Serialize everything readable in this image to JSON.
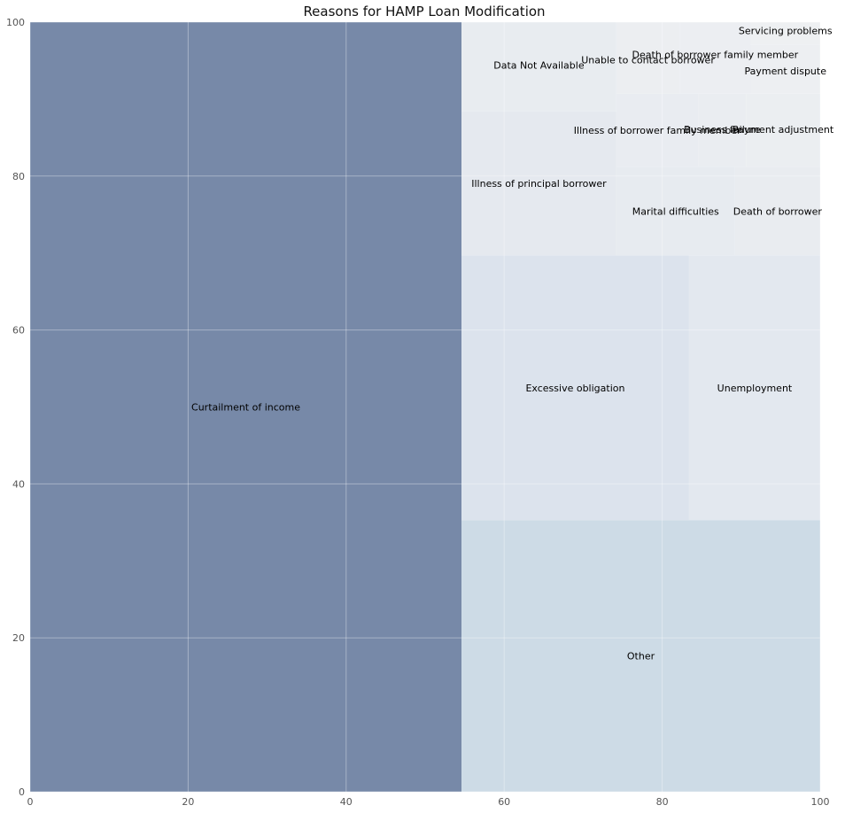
{
  "chart_data": {
    "type": "treemap",
    "title": "Reasons for HAMP Loan Modification",
    "xlabel": "",
    "ylabel": "",
    "xlim": [
      0,
      100
    ],
    "ylim": [
      0,
      100
    ],
    "x_ticks": [
      0,
      20,
      40,
      60,
      80,
      100
    ],
    "y_ticks": [
      0,
      20,
      40,
      60,
      80,
      100
    ],
    "grid": true,
    "cells": [
      {
        "label": "Curtailment of income",
        "x": 0,
        "y": 0,
        "dx": 54.6,
        "dy": 100,
        "color": "#7789a8"
      },
      {
        "label": "Other",
        "x": 54.6,
        "y": 0,
        "dx": 45.4,
        "dy": 35.3,
        "color": "#cddbe6"
      },
      {
        "label": "Excessive obligation",
        "x": 54.6,
        "y": 35.3,
        "dx": 28.8,
        "dy": 34.4,
        "color": "#dce3ed"
      },
      {
        "label": "Unemployment",
        "x": 83.4,
        "y": 35.3,
        "dx": 16.6,
        "dy": 34.4,
        "color": "#e3e8ef"
      },
      {
        "label": "Illness of principal borrower",
        "x": 54.6,
        "y": 69.7,
        "dx": 19.6,
        "dy": 18.7,
        "color": "#e5e9ef"
      },
      {
        "label": "Data Not Available",
        "x": 54.6,
        "y": 88.4,
        "dx": 19.6,
        "dy": 11.6,
        "color": "#e8ecf0"
      },
      {
        "label": "Marital difficulties",
        "x": 74.2,
        "y": 69.7,
        "dx": 15.0,
        "dy": 11.5,
        "color": "#e7ebf0"
      },
      {
        "label": "Death of borrower",
        "x": 89.2,
        "y": 69.7,
        "dx": 10.8,
        "dy": 11.5,
        "color": "#e9ecf0"
      },
      {
        "label": "Illness of borrower family member",
        "x": 74.2,
        "y": 81.2,
        "dx": 10.4,
        "dy": 9.5,
        "color": "#e9ecf1"
      },
      {
        "label": "Business failure",
        "x": 84.6,
        "y": 81.2,
        "dx": 6.0,
        "dy": 9.5,
        "color": "#eaedf1"
      },
      {
        "label": "Payment adjustment",
        "x": 90.6,
        "y": 81.2,
        "dx": 9.4,
        "dy": 9.5,
        "color": "#ebeef1"
      },
      {
        "label": "Unable to contact borrower",
        "x": 74.2,
        "y": 90.7,
        "dx": 8.0,
        "dy": 9.3,
        "color": "#eceef1"
      },
      {
        "label": "Death of borrower family member",
        "x": 82.2,
        "y": 90.7,
        "dx": 9.0,
        "dy": 9.3,
        "color": "#eceef2"
      },
      {
        "label": "Payment dispute",
        "x": 91.2,
        "y": 90.7,
        "dx": 8.8,
        "dy": 6.4,
        "color": "#edeff2"
      },
      {
        "label": "Servicing problems",
        "x": 91.2,
        "y": 97.1,
        "dx": 8.8,
        "dy": 2.9,
        "color": "#eef0f2"
      }
    ]
  }
}
